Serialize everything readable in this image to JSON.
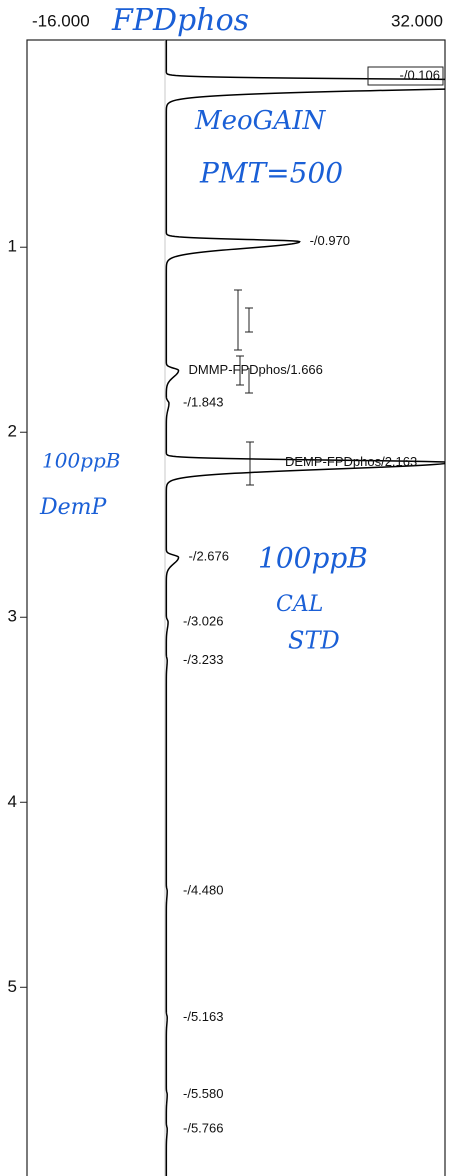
{
  "chart_data": {
    "type": "chromatogram",
    "xlim": [
      -16,
      32
    ],
    "xticks": [
      {
        "value": -16,
        "label": "-16.000"
      },
      {
        "value": 32,
        "label": "32.000"
      }
    ],
    "ylim": [
      -0.12,
      6.02
    ],
    "yticks": [
      1,
      2,
      3,
      4,
      5
    ],
    "color": "#000000",
    "peaks": [
      {
        "retention_time": 0.106,
        "height": 60,
        "label": "-/0.106"
      },
      {
        "retention_time": 0.97,
        "height": 15.3,
        "label": "-/0.970"
      },
      {
        "retention_time": 1.666,
        "height": 1.4,
        "label": "DMMP-FPDphos/1.666"
      },
      {
        "retention_time": 1.843,
        "height": 0.3,
        "label": "-/1.843"
      },
      {
        "retention_time": 2.163,
        "height": 32.5,
        "label": "DEMP-FPDphos/2.163"
      },
      {
        "retention_time": 2.676,
        "height": 1.4,
        "label": "-/2.676"
      },
      {
        "retention_time": 3.026,
        "height": 0.2,
        "label": "-/3.026"
      },
      {
        "retention_time": 3.233,
        "height": 0.1,
        "label": "-/3.233"
      },
      {
        "retention_time": 4.48,
        "height": 0.1,
        "label": "-/4.480"
      },
      {
        "retention_time": 5.163,
        "height": 0.1,
        "label": "-/5.163"
      },
      {
        "retention_time": 5.58,
        "height": 0.1,
        "label": "-/5.580"
      },
      {
        "retention_time": 5.766,
        "height": 0.1,
        "label": "-/5.766"
      }
    ],
    "annotations": [
      "FPDphos",
      "MeoGAIN",
      "PMT=500",
      "100ppB",
      "DemP",
      "100ppB",
      "CAL",
      "STD"
    ]
  }
}
